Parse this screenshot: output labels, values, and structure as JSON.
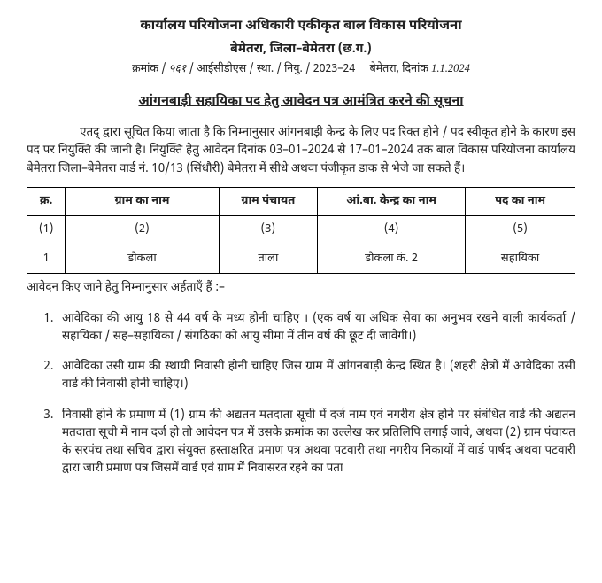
{
  "header": {
    "line1": "कार्यालय परियोजना अधिकारी एकीकृत बाल विकास परियोजना",
    "line2": "बेमेतरा, जिला–बेमेतरा (छ.ग.)",
    "kramank_prefix": "क्रमांक /",
    "kramank_hand": "५६१",
    "line3_rest": "/ आईसीडीएस / स्था. / नियु. / 2023–24",
    "place_date_prefix": "बेमेतरा, दिनांक",
    "date_hand": "1.1.2024"
  },
  "notice_title": "आंगनबाड़ी सहायिका पद हेतु आवेदन पत्र आमंत्रित करने की सूचना",
  "intro_para": "एतद् द्वारा सूचित किया जाता है कि निम्नानुसार आंगनबाड़ी केन्द्र के लिए पद रिक्त होने / पद स्वीकृत होने के कारण इस पद पर नियुक्ति की जानी है। नियुक्ति हेतु आवेदन दिनांक 03–01–2024 से 17–01–2024 तक बाल विकास परियोजना कार्यालय बेमेतरा जिला–बेमेतरा वार्ड नं. 10/13 (सिंधौरी) बेमेतरा में सीधे अथवा पंजीकृत डाक से भेजे जा सकते हैं।",
  "table": {
    "headers": {
      "sn": "क्र.",
      "village": "ग्राम का नाम",
      "panchayat": "ग्राम पंचायत",
      "center": "आं.बा. केन्द्र का नाम",
      "post": "पद का नाम"
    },
    "colnums": {
      "c1": "(1)",
      "c2": "(2)",
      "c3": "(3)",
      "c4": "(4)",
      "c5": "(5)"
    },
    "row": {
      "sn": "1",
      "village": "डोकला",
      "panchayat": "ताला",
      "center": "डोकला कं. 2",
      "post": "सहायिका"
    }
  },
  "eligibility_intro": "आवेदन किए जाने हेतु निम्नानुसार अर्हताएँ हैं :–",
  "rules": {
    "r1": "आवेदिका की आयु 18 से 44 वर्ष के मध्य होनी चाहिए । (एक वर्ष या अधिक सेवा का अनुभव रखने वाली कार्यकर्ता / सहायिका / सह–सहायिका / संगठिका को आयु सीमा में तीन वर्ष की छूट दी जावेगी।)",
    "r2": "आवेदिका उसी ग्राम की स्थायी निवासी होनी चाहिए जिस ग्राम में आंगनबाड़ी केन्द्र स्थित है। (शहरी क्षेत्रों में आवेदिका उसी वार्ड की निवासी होनी चाहिए।)",
    "r3": "निवासी होने के प्रमाण में (1) ग्राम की अद्यतन मतदाता सूची में दर्ज नाम एवं नगरीय क्षेत्र होने पर संबंधित वार्ड की अद्यतन मतदाता सूची में नाम दर्ज हो तो आवेदन पत्र में उसके क्रमांक का उल्लेख कर प्रतिलिपि लगाई जावे, अथवा (2) ग्राम पंचायत के सरपंच तथा सचिव द्वारा संयुक्त हस्ताक्षरित प्रमाण पत्र अथवा पटवारी तथा नगरीय निकायों में वार्ड पार्षद अथवा पटवारी द्वारा जारी प्रमाण पत्र जिसमें वार्ड एवं ग्राम में निवासरत रहने का पता"
  }
}
